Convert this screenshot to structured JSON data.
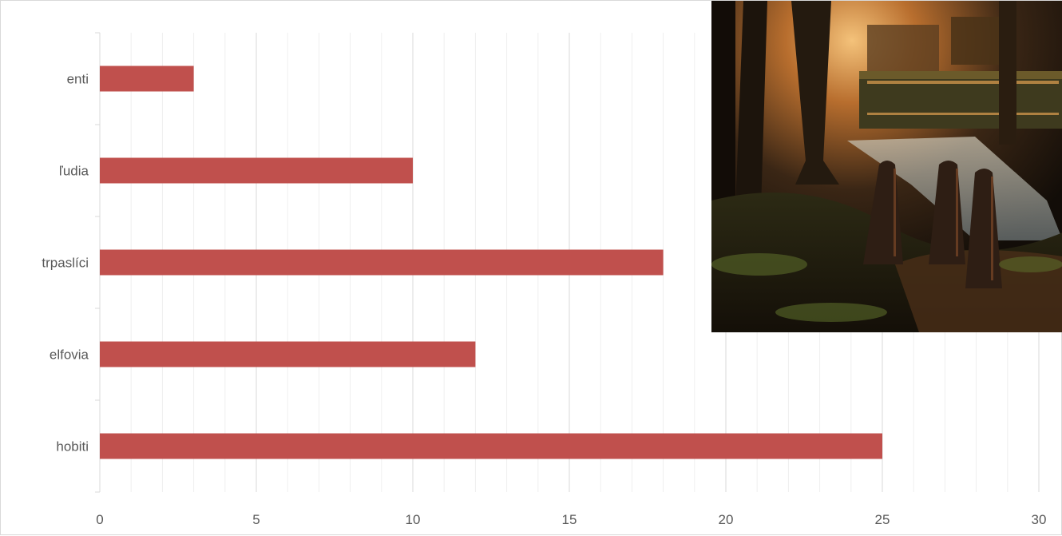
{
  "chart_data": {
    "type": "bar",
    "orientation": "horizontal",
    "categories": [
      "enti",
      "ľudia",
      "trpaslíci",
      "elfovia",
      "hobiti"
    ],
    "values": [
      3,
      10,
      18,
      12,
      25
    ],
    "title": "",
    "xlabel": "",
    "ylabel": "",
    "xlim": [
      0,
      30
    ],
    "xticks": [
      0,
      5,
      10,
      15,
      20,
      25,
      30
    ],
    "grid": "vertical major and minor gridlines",
    "legend": "none",
    "bar_color": "#c0504d"
  },
  "image": {
    "name": "forest-procession-photo",
    "placement": "top-right"
  }
}
